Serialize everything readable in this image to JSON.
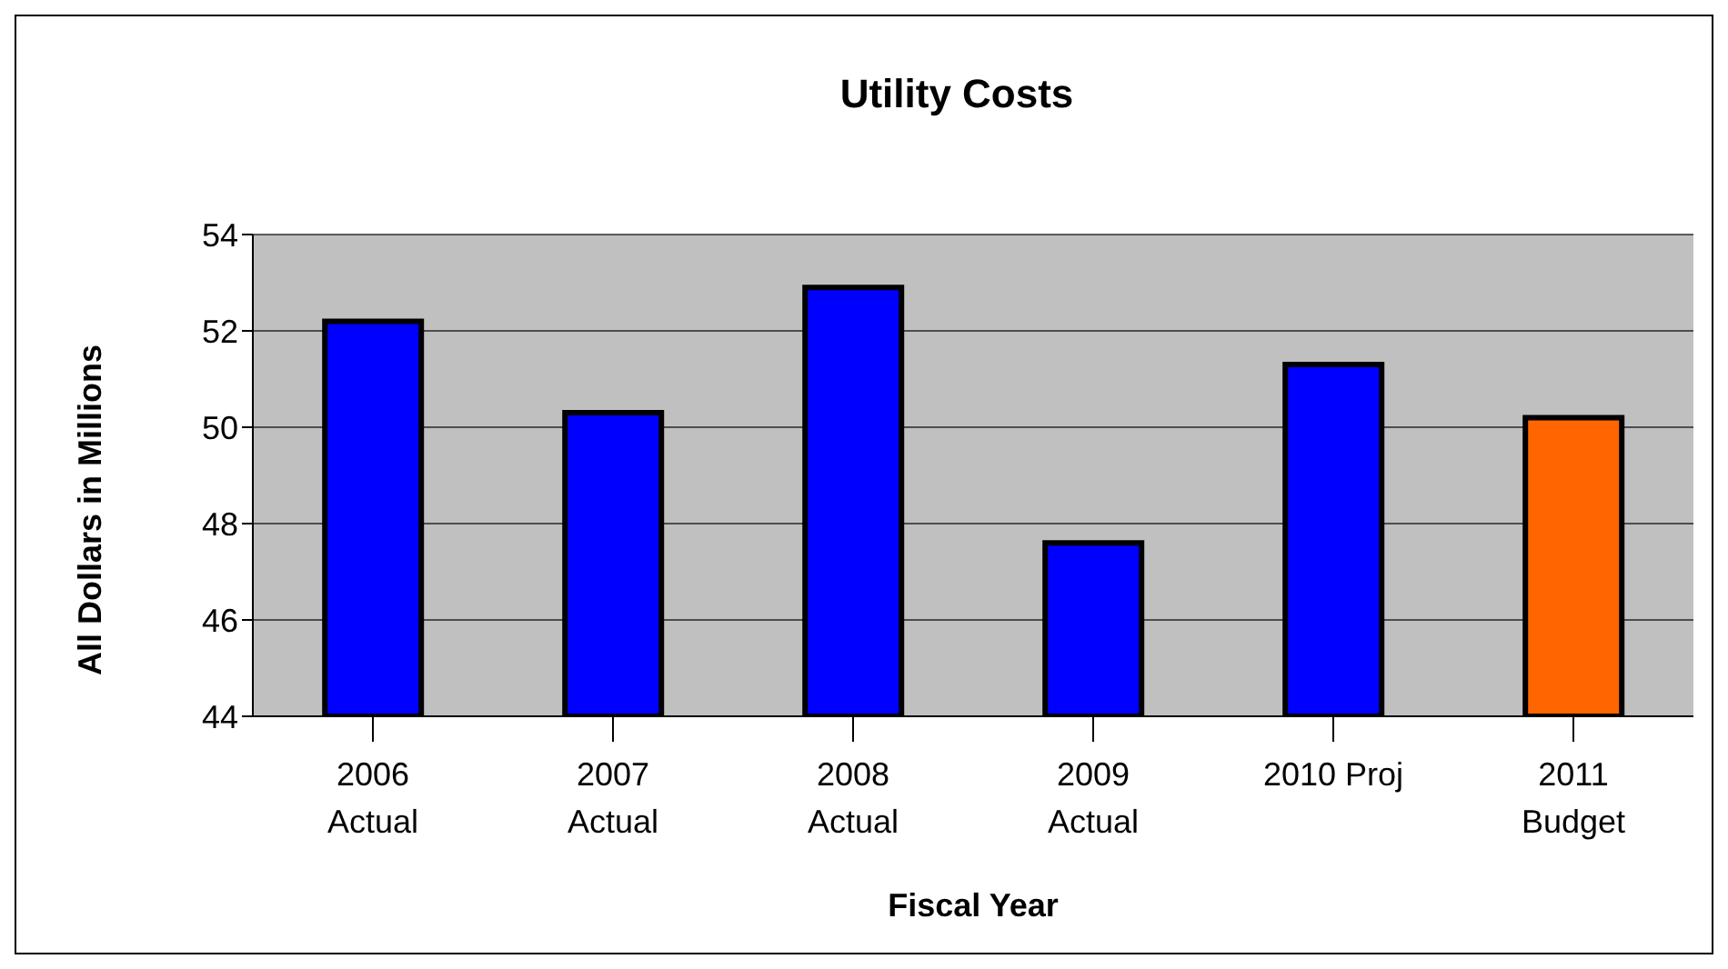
{
  "chart_data": {
    "type": "bar",
    "title": "Utility Costs",
    "xlabel": "Fiscal Year",
    "ylabel": "All Dollars in Millions",
    "categories": [
      "2006\nActual",
      "2007\nActual",
      "2008\nActual",
      "2009\nActual",
      "2010 Proj",
      "2011\nBudget"
    ],
    "values": [
      52.2,
      50.3,
      52.9,
      47.6,
      51.3,
      50.2
    ],
    "colors": [
      "#0000ff",
      "#0000ff",
      "#0000ff",
      "#0000ff",
      "#0000ff",
      "#ff6600"
    ],
    "ylim": [
      44,
      54
    ],
    "yticks": [
      44,
      46,
      48,
      50,
      52,
      54
    ],
    "grid": "y"
  }
}
